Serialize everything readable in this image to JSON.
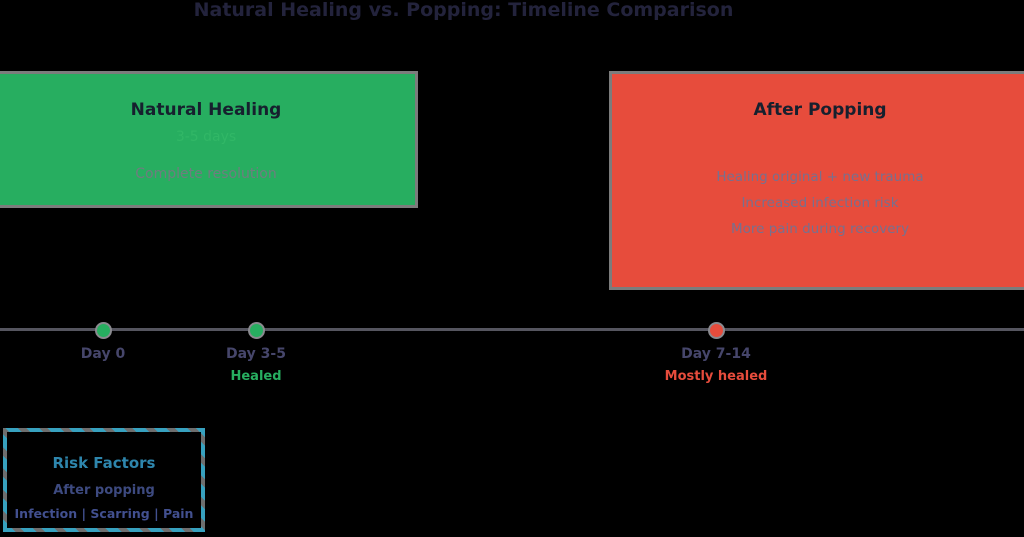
{
  "title": "Natural Healing vs. Popping: Timeline Comparison",
  "cards": {
    "natural": {
      "heading": "Natural Healing",
      "duration": "3-5 days",
      "note": "Complete resolution"
    },
    "popped": {
      "heading": "After Popping",
      "notes": [
        "Healing original + new trauma",
        "Increased infection risk",
        "More pain during recovery"
      ]
    }
  },
  "timeline": {
    "markers": [
      {
        "label": "Day 0",
        "sublabel": "",
        "dot_color": "#27ae60"
      },
      {
        "label": "Day 3-5",
        "sublabel": "Healed",
        "dot_color": "#27ae60"
      },
      {
        "label": "Day 7-14",
        "sublabel": "Mostly healed",
        "dot_color": "#e74c3c"
      }
    ]
  },
  "risk_box": {
    "title": "Risk Factors",
    "line1": "After popping",
    "line2": "Infection | Scarring | Pain"
  },
  "colors": {
    "background": "#000000",
    "title_text": "#23233c",
    "green_card": "#27ae60",
    "red_card": "#e74c3c",
    "card_border": "#7c7c7c",
    "card_heading": "#16202e",
    "green_duration_text": "#31b766",
    "green_note_text": "#6f7d7f",
    "red_note_text": "#77708f",
    "timeline_line": "#55555f",
    "day_label": "#46466b",
    "healed_text": "#27ae60",
    "mostly_healed_text": "#e74c3c",
    "risk_border": "#37a1bf",
    "risk_title": "#2e86ad",
    "risk_text": "#3d4a80"
  }
}
